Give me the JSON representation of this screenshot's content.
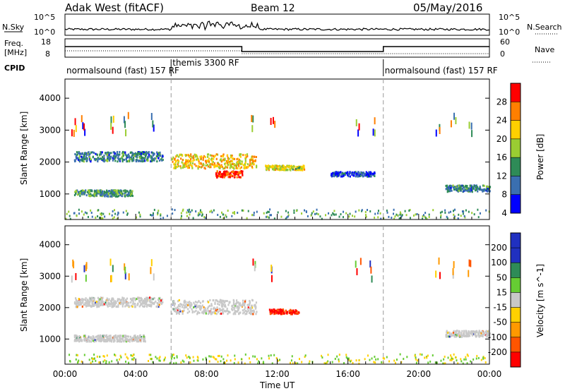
{
  "header": {
    "site": "Adak West (fitACF)",
    "beam": "Beam 12",
    "date": "05/May/2016"
  },
  "strips": {
    "nsky_label": "N.Sky",
    "nsearch_label": "N.Search",
    "freq_label_1": "Freq.",
    "freq_label_2": "[MHz]",
    "nave_label": "Nave",
    "cpid_label": "CPID",
    "nsky_ticks": [
      "10^5",
      "10^0"
    ],
    "nsearch_ticks": [
      "10^5",
      "10^0"
    ],
    "freq_ticks": [
      "18",
      "8"
    ],
    "nave_ticks": [
      "60",
      "0"
    ],
    "cpid_segments": [
      {
        "label": "normalsound (fast) 157 RF",
        "start_h": 0,
        "end_h": 6
      },
      {
        "label": "themis 3300 RF",
        "start_h": 6,
        "end_h": 18
      },
      {
        "label": "normalsound (fast) 157 RF",
        "start_h": 18,
        "end_h": 24
      }
    ]
  },
  "chart_data": [
    {
      "type": "heatmap",
      "name": "power",
      "xlabel": "Time UT",
      "ylabel": "Slant Range [km]",
      "xlim": [
        0,
        24
      ],
      "ylim": [
        200,
        4600
      ],
      "x_ticks": [
        "00:00",
        "04:00",
        "08:00",
        "12:00",
        "16:00",
        "20:00",
        "00:00"
      ],
      "y_ticks": [
        "1000",
        "2000",
        "3000",
        "4000"
      ],
      "colorbar_label": "Power [dB]",
      "colorbar_ticks": [
        "28",
        "24",
        "20",
        "16",
        "12",
        "8",
        "4"
      ],
      "colorbar_colors": [
        "#ff0000",
        "#ff7f00",
        "#ffd000",
        "#9acd32",
        "#2e8b57",
        "#3a6fb0",
        "#0000ff"
      ],
      "features": [
        {
          "t_start": 0.5,
          "t_end": 5.5,
          "range_km": 2200,
          "range_width_km": 300,
          "level_db": 10
        },
        {
          "t_start": 0.5,
          "t_end": 3.8,
          "range_km": 1050,
          "range_width_km": 200,
          "level_db": 12
        },
        {
          "t_start": 6.0,
          "t_end": 10.8,
          "range_km": 2050,
          "range_width_km": 450,
          "level_db": 20
        },
        {
          "t_start": 8.5,
          "t_end": 10.0,
          "range_km": 1650,
          "range_width_km": 200,
          "level_db": 28
        },
        {
          "t_start": 11.3,
          "t_end": 13.5,
          "range_km": 1850,
          "range_width_km": 150,
          "level_db": 18
        },
        {
          "t_start": 15.0,
          "t_end": 17.5,
          "range_km": 1650,
          "range_width_km": 150,
          "level_db": 6
        },
        {
          "t_start": 21.5,
          "t_end": 24.0,
          "range_km": 1200,
          "range_width_km": 200,
          "level_db": 10
        }
      ]
    },
    {
      "type": "heatmap",
      "name": "velocity",
      "xlabel": "Time UT",
      "ylabel": "Slant Range [km]",
      "xlim": [
        0,
        24
      ],
      "ylim": [
        200,
        4600
      ],
      "x_ticks": [
        "00:00",
        "04:00",
        "08:00",
        "12:00",
        "16:00",
        "20:00",
        "00:00"
      ],
      "y_ticks": [
        "1000",
        "2000",
        "3000",
        "4000"
      ],
      "colorbar_label": "Velocity [m s^-1]",
      "colorbar_ticks": [
        "200",
        "100",
        "50",
        "15",
        "-15",
        "-50",
        "-100",
        "-200"
      ],
      "colorbar_colors": [
        "#2030c0",
        "#2e8b57",
        "#66cc33",
        "#c8c8c8",
        "#ffd000",
        "#ff9900",
        "#ff5500",
        "#ff0000"
      ],
      "features": [
        {
          "t_start": 0.5,
          "t_end": 5.5,
          "range_km": 2200,
          "range_width_km": 300,
          "level_ms": 0
        },
        {
          "t_start": 0.5,
          "t_end": 4.5,
          "range_km": 1050,
          "range_width_km": 200,
          "level_ms": 0
        },
        {
          "t_start": 6.0,
          "t_end": 10.8,
          "range_km": 2050,
          "range_width_km": 450,
          "level_ms": 0
        },
        {
          "t_start": 11.5,
          "t_end": 13.2,
          "range_km": 1900,
          "range_width_km": 150,
          "level_ms": -200
        },
        {
          "t_start": 21.5,
          "t_end": 24.0,
          "range_km": 1200,
          "range_width_km": 200,
          "level_ms": 0
        }
      ]
    }
  ]
}
